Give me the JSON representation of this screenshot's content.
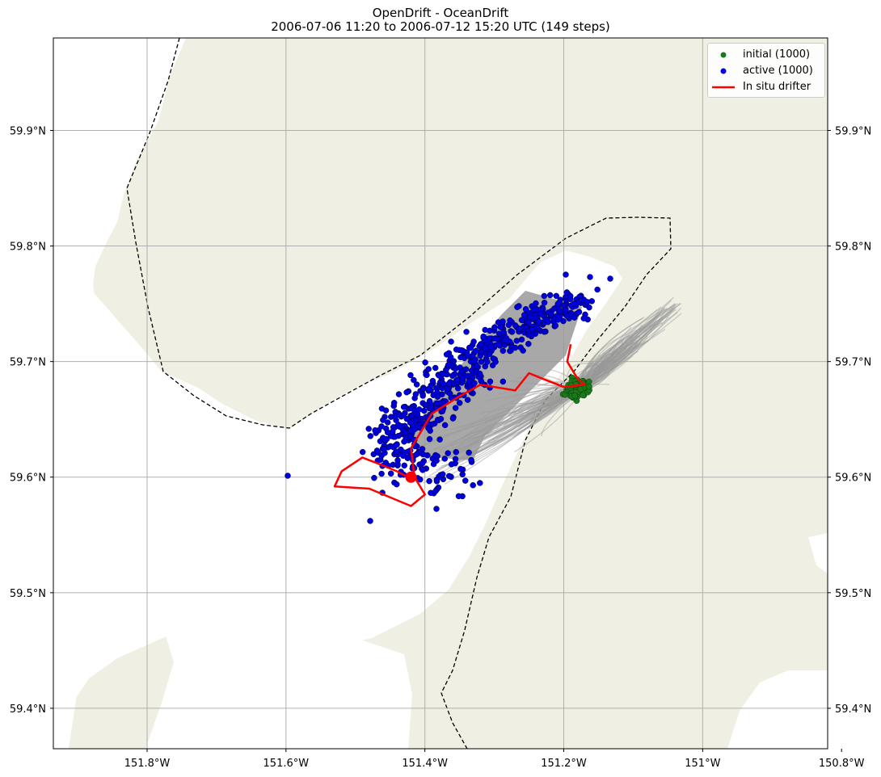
{
  "title": "OpenDrift - OceanDrift",
  "subtitle": "2006-07-06 11:20 to 2006-07-12 15:20 UTC (149 steps)",
  "map": {
    "lon_range": [
      -151.935,
      -150.82
    ],
    "lat_range": [
      59.365,
      59.98
    ],
    "x_ticks": [
      {
        "value": -151.8,
        "label": "151.8°W"
      },
      {
        "value": -151.6,
        "label": "151.6°W"
      },
      {
        "value": -151.4,
        "label": "151.4°W"
      },
      {
        "value": -151.2,
        "label": "151.2°W"
      },
      {
        "value": -151.0,
        "label": "151°W"
      },
      {
        "value": -150.8,
        "label": "150.8°W"
      }
    ],
    "y_ticks": [
      {
        "value": 59.9,
        "label": "59.9°N"
      },
      {
        "value": 59.8,
        "label": "59.8°N"
      },
      {
        "value": 59.7,
        "label": "59.7°N"
      },
      {
        "value": 59.6,
        "label": "59.6°N"
      },
      {
        "value": 59.5,
        "label": "59.5°N"
      },
      {
        "value": 59.4,
        "label": "59.4°N"
      }
    ],
    "grid": true,
    "colors": {
      "land": "#efefe3",
      "ocean": "#ffffff",
      "initial": "#1a7a1a",
      "active": "#0000dd",
      "trajectory": "#999999",
      "drifter": "#ff0000",
      "boundary": "#000000"
    }
  },
  "legend": {
    "position": "top-right",
    "items": [
      {
        "label": "initial (1000)",
        "kind": "dot",
        "color": "#1a7a1a"
      },
      {
        "label": "active (1000)",
        "kind": "dot",
        "color": "#0000dd"
      },
      {
        "label": "In situ drifter",
        "kind": "line",
        "color": "#ff0000"
      }
    ]
  },
  "chart_data": {
    "type": "scatter",
    "series": [
      {
        "name": "initial (1000)",
        "count": 1000,
        "center_lon": -151.18,
        "center_lat": 59.677,
        "spread_lon": 0.025,
        "spread_lat": 0.01
      },
      {
        "name": "active (1000)",
        "count": 1000,
        "center_lon": -151.2,
        "center_lat": 59.68,
        "extent_lon": [
          -151.54,
          -151.02
        ],
        "extent_lat": [
          59.56,
          59.775
        ]
      },
      {
        "name": "In situ drifter",
        "lon": [
          -151.19,
          -151.195,
          -151.18,
          -151.17,
          -151.2,
          -151.23,
          -151.25,
          -151.27,
          -151.32,
          -151.35,
          -151.39,
          -151.42,
          -151.415,
          -151.4,
          -151.42,
          -151.44,
          -151.48,
          -151.53,
          -151.52,
          -151.49,
          -151.46,
          -151.44,
          -151.425
        ],
        "lat": [
          59.715,
          59.7,
          59.685,
          59.68,
          59.678,
          59.685,
          59.69,
          59.675,
          59.68,
          59.67,
          59.655,
          59.625,
          59.6,
          59.585,
          59.575,
          59.58,
          59.59,
          59.592,
          59.605,
          59.617,
          59.61,
          59.605,
          59.6
        ]
      }
    ],
    "end_marker": {
      "lon": -151.42,
      "lat": 59.6
    }
  }
}
